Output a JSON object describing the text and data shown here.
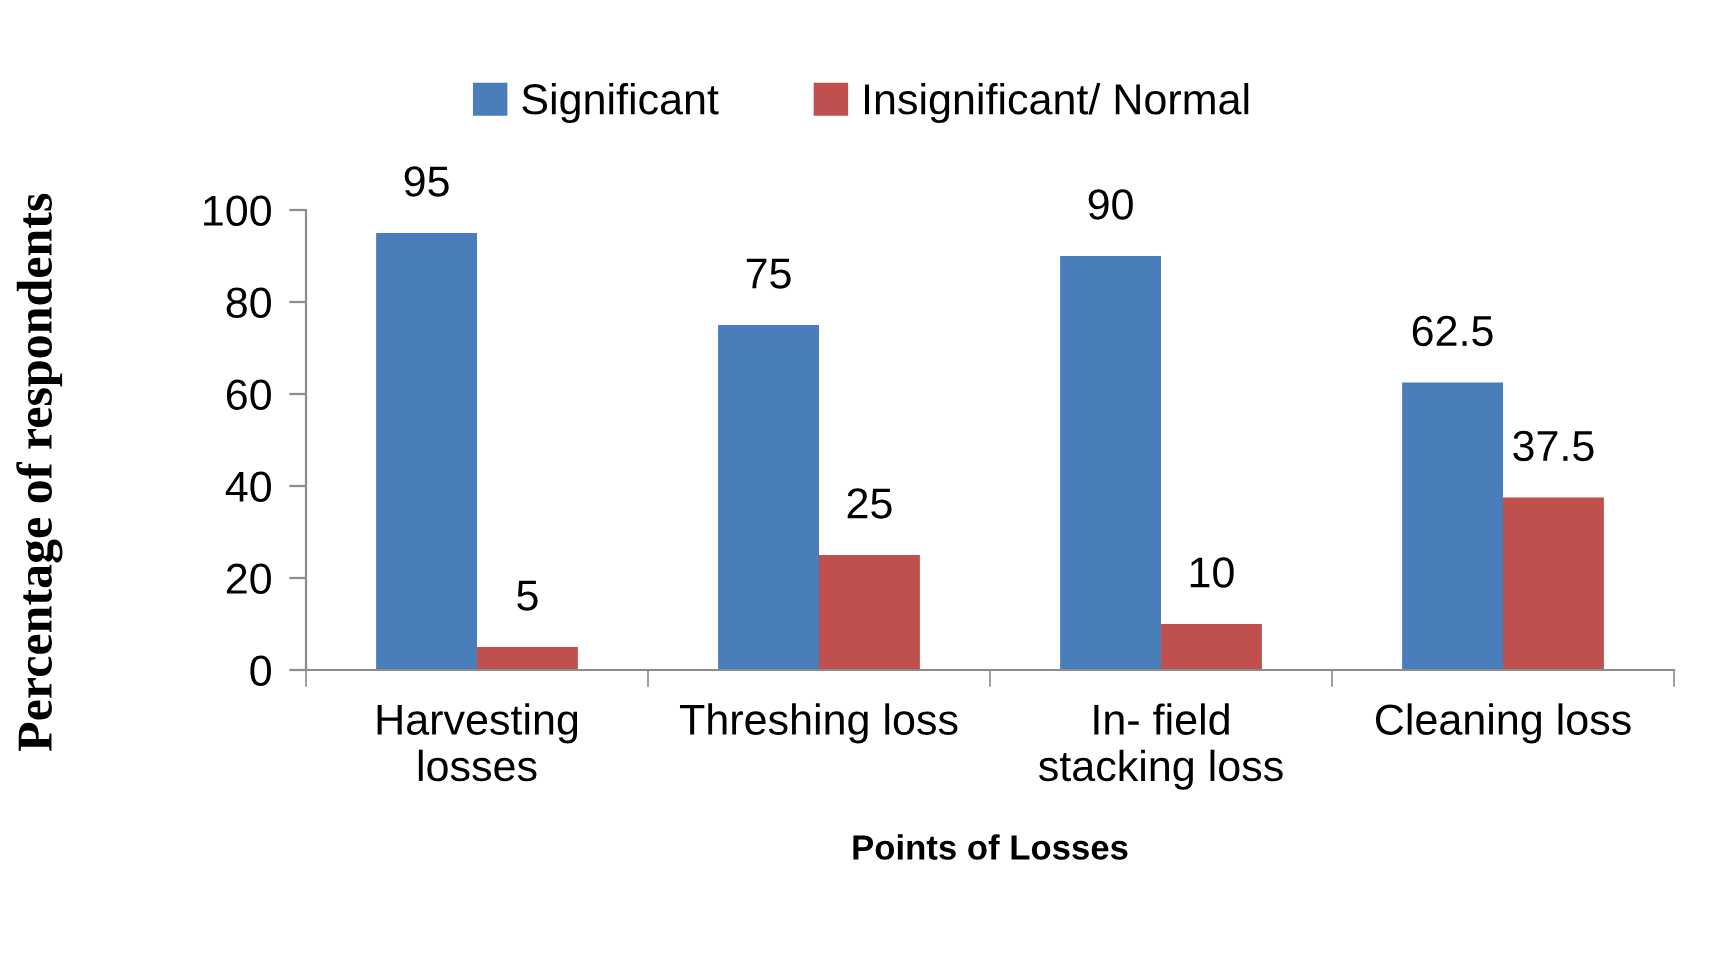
{
  "chart_data": {
    "type": "bar",
    "xlabel": "Points of Losses",
    "ylabel": "Percentage of respondents",
    "categories": [
      "Harvesting losses",
      "Threshing loss",
      "In- field stacking loss",
      "Cleaning loss"
    ],
    "series": [
      {
        "name": "Significant",
        "color": "#4a7ebb",
        "values": [
          95,
          75,
          90,
          62.5
        ]
      },
      {
        "name": "Insignificant/ Normal",
        "color": "#c0504d",
        "values": [
          5,
          25,
          10,
          37.5
        ]
      }
    ],
    "ylim": [
      0,
      100
    ],
    "yticks": [
      0,
      20,
      40,
      60,
      80,
      100
    ],
    "data_labels": true,
    "legend": "top",
    "grid": false
  }
}
